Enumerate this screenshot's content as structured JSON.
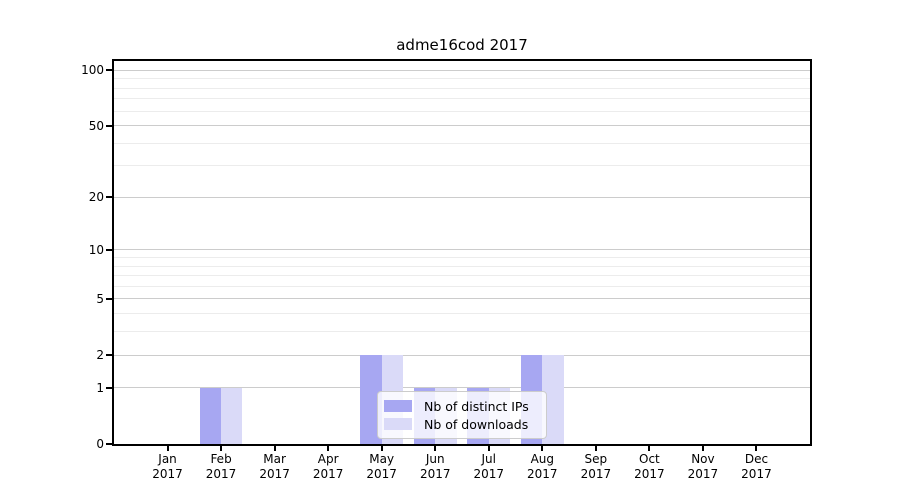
{
  "title": "adme16cod 2017",
  "chart_data": {
    "type": "bar",
    "title": "adme16cod 2017",
    "categories": [
      "Jan",
      "Feb",
      "Mar",
      "Apr",
      "May",
      "Jun",
      "Jul",
      "Aug",
      "Sep",
      "Oct",
      "Nov",
      "Dec"
    ],
    "year_label": "2017",
    "x_tick_labels": [
      "Jan 2017",
      "Feb 2017",
      "Mar 2017",
      "Apr 2017",
      "May 2017",
      "Jun 2017",
      "Jul 2017",
      "Aug 2017",
      "Sep 2017",
      "Oct 2017",
      "Nov 2017",
      "Dec 2017"
    ],
    "series": [
      {
        "name": "Nb of distinct IPs",
        "color": "#a7a7f2",
        "values": [
          0,
          1,
          0,
          0,
          2,
          1,
          1,
          2,
          0,
          0,
          0,
          0
        ]
      },
      {
        "name": "Nb of downloads",
        "color": "#dadaf8",
        "values": [
          0,
          1,
          0,
          0,
          2,
          1,
          1,
          2,
          0,
          0,
          0,
          0
        ]
      }
    ],
    "y_axis": {
      "scale": "log10(1+v)",
      "tick_values": [
        0,
        1,
        2,
        5,
        10,
        20,
        50,
        100
      ],
      "tick_labels": [
        "0",
        "1",
        "2",
        "5",
        "10",
        "20",
        "50",
        "100"
      ],
      "minor_gridline_values": [
        3,
        4,
        6,
        7,
        8,
        9,
        30,
        40,
        60,
        70,
        80,
        90
      ],
      "ylim": [
        0,
        112
      ]
    },
    "xlabel": "",
    "ylabel": "",
    "grid": true,
    "legend_position": "lower center",
    "colors": {
      "major_grid": "#cccccc",
      "minor_grid": "#ececec",
      "axis": "#000000",
      "background": "#ffffff"
    }
  }
}
